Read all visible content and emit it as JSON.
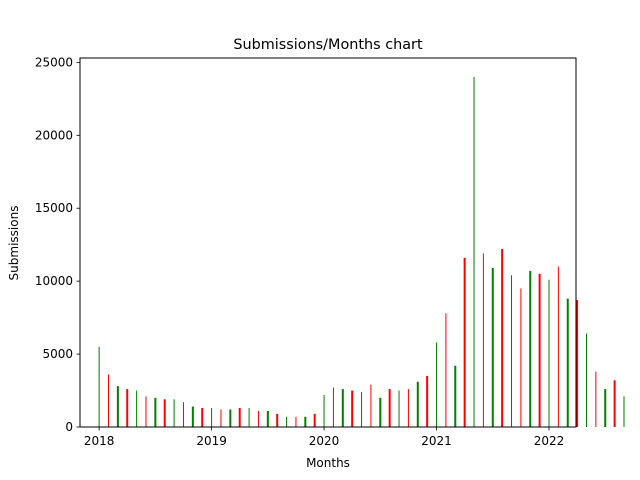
{
  "chart_data": {
    "type": "bar",
    "title": "Submissions/Months chart",
    "xlabel": "Months",
    "ylabel": "Submissions",
    "ylim": [
      0,
      25300
    ],
    "xlim": [
      2017.83,
      2022.24
    ],
    "y_ticks": [
      0,
      5000,
      10000,
      15000,
      20000,
      25000
    ],
    "x_ticks": [
      2018,
      2019,
      2020,
      2021,
      2022
    ],
    "grid": false,
    "legend": "none",
    "colors": {
      "green": "#008000",
      "red": "#ff0000"
    },
    "series": [
      {
        "name": "",
        "bar_color_pattern": "alternating green/red by month",
        "x": [
          "2018-01",
          "2018-02",
          "2018-03",
          "2018-04",
          "2018-05",
          "2018-06",
          "2018-07",
          "2018-08",
          "2018-09",
          "2018-10",
          "2018-11",
          "2018-12",
          "2019-01",
          "2019-02",
          "2019-03",
          "2019-04",
          "2019-05",
          "2019-06",
          "2019-07",
          "2019-08",
          "2019-09",
          "2019-10",
          "2019-11",
          "2019-12",
          "2020-01",
          "2020-02",
          "2020-03",
          "2020-04",
          "2020-05",
          "2020-06",
          "2020-07",
          "2020-08",
          "2020-09",
          "2020-10",
          "2020-11",
          "2020-12",
          "2021-01",
          "2021-02",
          "2021-03",
          "2021-04",
          "2021-05",
          "2021-06",
          "2021-07",
          "2021-08",
          "2021-09",
          "2021-10",
          "2021-11",
          "2021-12",
          "2022-01",
          "2022-02",
          "2022-03",
          "2022-04",
          "2022-05",
          "2022-06",
          "2022-07",
          "2022-08",
          "2022-09",
          "2022-10"
        ],
        "values": [
          5500,
          3600,
          2800,
          2600,
          2500,
          2100,
          2000,
          1900,
          1900,
          1700,
          1400,
          1300,
          1300,
          1200,
          1200,
          1300,
          1300,
          1100,
          1100,
          900,
          700,
          700,
          700,
          900,
          2200,
          2700,
          2600,
          2500,
          2400,
          2900,
          2000,
          2600,
          2500,
          2600,
          3100,
          3500,
          5800,
          7800,
          4200,
          11600,
          24000,
          11900,
          10900,
          12200,
          10400,
          9500,
          10700,
          10500,
          10100,
          11000,
          8800,
          8700,
          6400,
          3800,
          2600,
          3200,
          2100,
          0
        ]
      }
    ]
  }
}
